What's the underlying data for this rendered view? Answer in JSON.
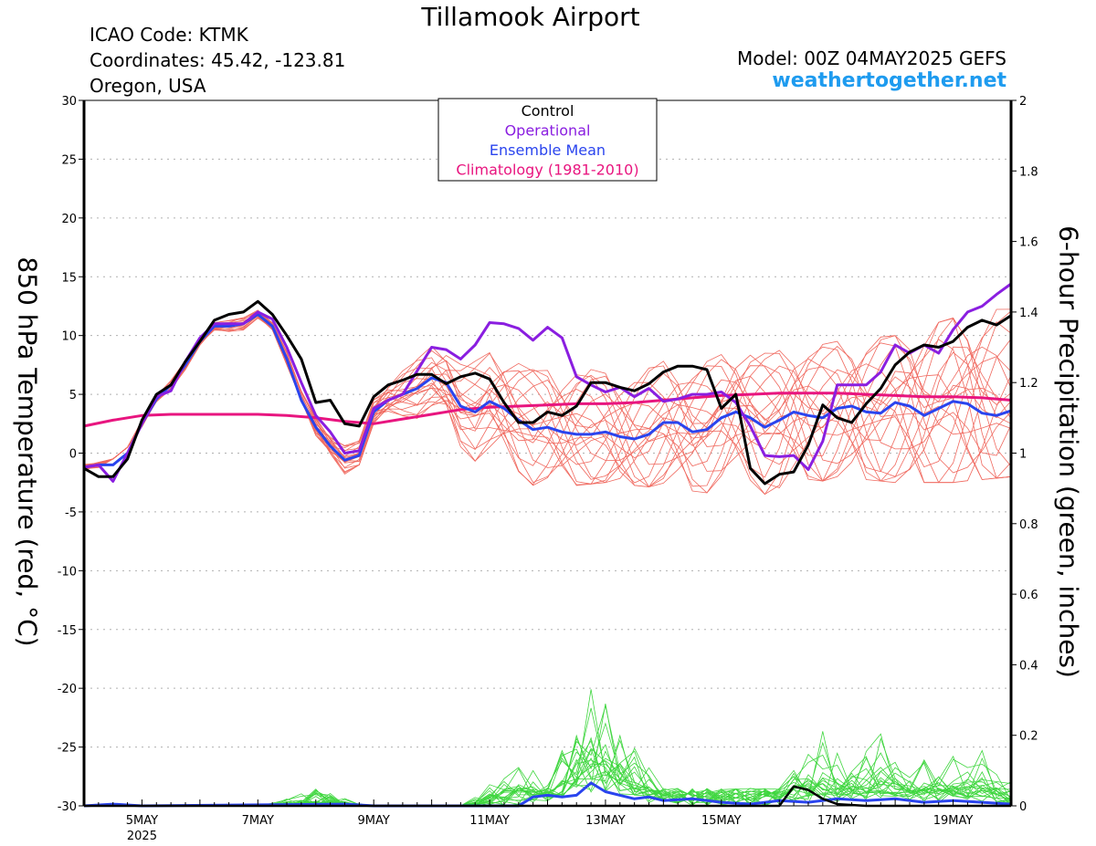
{
  "header": {
    "title": "Tillamook Airport",
    "icao": "ICAO Code: KTMK",
    "coords": "Coordinates: 45.42, -123.81",
    "region": "Oregon, USA",
    "model": "Model: 00Z 04MAY2025 GEFS",
    "site": "weathertogether.net"
  },
  "chart_data": {
    "type": "line",
    "ylabel": "850 hPa Temperature (red, °C)",
    "ylabel2": "6-hour Precipitation (green, inches)",
    "xlim": [
      4.0,
      20.0
    ],
    "ylim": [
      -30,
      30
    ],
    "ylim2": [
      0,
      2
    ],
    "yticks": [
      30,
      25,
      20,
      15,
      10,
      5,
      0,
      -5,
      -10,
      -15,
      -20,
      -25,
      -30
    ],
    "yticks2": [
      "2",
      "1.8",
      "1.6",
      "1.4",
      "1.2",
      "1",
      "0.8",
      "0.6",
      "0.4",
      "0.2",
      "0"
    ],
    "xtick_labels": [
      {
        "x": 5,
        "label": "5MAY",
        "sub": "2025"
      },
      {
        "x": 7,
        "label": "7MAY"
      },
      {
        "x": 9,
        "label": "9MAY"
      },
      {
        "x": 11,
        "label": "11MAY"
      },
      {
        "x": 13,
        "label": "13MAY"
      },
      {
        "x": 15,
        "label": "15MAY"
      },
      {
        "x": 17,
        "label": "17MAY"
      },
      {
        "x": 19,
        "label": "19MAY"
      }
    ],
    "grid": true,
    "legend": {
      "position": "top-center",
      "entries": [
        {
          "name": "Control",
          "color": "#000000"
        },
        {
          "name": "Operational",
          "color": "#8a1ee0"
        },
        {
          "name": "Ensemble Mean",
          "color": "#2a44ee"
        },
        {
          "name": "Climatology (1981-2010)",
          "color": "#e8157f"
        }
      ]
    },
    "colors": {
      "control": "#000000",
      "operational": "#8a1ee0",
      "mean": "#2a44ee",
      "climatology": "#e8157f",
      "members_temp": "#f0695f",
      "members_precip": "#3ed63e"
    },
    "series": [
      {
        "name": "Control",
        "role": "control_temp",
        "points": [
          [
            4.0,
            -1.3
          ],
          [
            4.25,
            -2.0
          ],
          [
            4.5,
            -2.0
          ],
          [
            4.75,
            -0.5
          ],
          [
            5.0,
            2.8
          ],
          [
            5.25,
            5.0
          ],
          [
            5.5,
            5.8
          ],
          [
            5.75,
            7.8
          ],
          [
            6.0,
            9.5
          ],
          [
            6.25,
            11.3
          ],
          [
            6.5,
            11.8
          ],
          [
            6.75,
            12.0
          ],
          [
            7.0,
            12.9
          ],
          [
            7.25,
            11.8
          ],
          [
            7.5,
            10.0
          ],
          [
            7.75,
            8.0
          ],
          [
            8.0,
            4.3
          ],
          [
            8.25,
            4.5
          ],
          [
            8.5,
            2.5
          ],
          [
            8.75,
            2.3
          ],
          [
            9.0,
            4.8
          ],
          [
            9.25,
            5.8
          ],
          [
            9.5,
            6.2
          ],
          [
            9.75,
            6.7
          ],
          [
            10.0,
            6.7
          ],
          [
            10.25,
            5.9
          ],
          [
            10.5,
            6.5
          ],
          [
            10.75,
            6.8
          ],
          [
            11.0,
            6.3
          ],
          [
            11.25,
            4.3
          ],
          [
            11.5,
            2.6
          ],
          [
            11.75,
            2.6
          ],
          [
            12.0,
            3.5
          ],
          [
            12.25,
            3.2
          ],
          [
            12.5,
            4.0
          ],
          [
            12.75,
            6.0
          ],
          [
            13.0,
            6.0
          ],
          [
            13.25,
            5.6
          ],
          [
            13.5,
            5.3
          ],
          [
            13.75,
            5.9
          ],
          [
            14.0,
            6.9
          ],
          [
            14.25,
            7.4
          ],
          [
            14.5,
            7.4
          ],
          [
            14.75,
            7.1
          ],
          [
            15.0,
            3.8
          ],
          [
            15.25,
            5.0
          ],
          [
            15.5,
            -1.3
          ],
          [
            15.75,
            -2.6
          ],
          [
            16.0,
            -1.8
          ],
          [
            16.25,
            -1.6
          ],
          [
            16.5,
            0.7
          ],
          [
            16.75,
            4.1
          ],
          [
            17.0,
            3.0
          ],
          [
            17.25,
            2.6
          ],
          [
            17.5,
            4.2
          ],
          [
            17.75,
            5.5
          ],
          [
            18.0,
            7.5
          ],
          [
            18.25,
            8.6
          ],
          [
            18.5,
            9.2
          ],
          [
            18.75,
            9.0
          ],
          [
            19.0,
            9.5
          ],
          [
            19.25,
            10.7
          ],
          [
            19.5,
            11.3
          ],
          [
            19.75,
            10.9
          ],
          [
            20.0,
            11.7
          ]
        ]
      },
      {
        "name": "Operational",
        "role": "operational_temp",
        "points": [
          [
            4.0,
            -1.2
          ],
          [
            4.25,
            -1.0
          ],
          [
            4.5,
            -2.4
          ],
          [
            4.75,
            0.0
          ],
          [
            5.0,
            2.5
          ],
          [
            5.25,
            4.8
          ],
          [
            5.5,
            5.3
          ],
          [
            5.75,
            7.8
          ],
          [
            6.0,
            9.8
          ],
          [
            6.25,
            11.0
          ],
          [
            6.5,
            11.0
          ],
          [
            6.75,
            11.0
          ],
          [
            7.0,
            12.0
          ],
          [
            7.25,
            11.4
          ],
          [
            7.5,
            9.0
          ],
          [
            7.75,
            6.0
          ],
          [
            8.0,
            3.2
          ],
          [
            8.25,
            1.8
          ],
          [
            8.5,
            0.0
          ],
          [
            8.75,
            0.2
          ],
          [
            9.0,
            3.8
          ],
          [
            9.25,
            4.5
          ],
          [
            9.5,
            5.0
          ],
          [
            9.75,
            7.0
          ],
          [
            10.0,
            9.0
          ],
          [
            10.25,
            8.8
          ],
          [
            10.5,
            8.0
          ],
          [
            10.75,
            9.2
          ],
          [
            11.0,
            11.1
          ],
          [
            11.25,
            11.0
          ],
          [
            11.5,
            10.6
          ],
          [
            11.75,
            9.6
          ],
          [
            12.0,
            10.7
          ],
          [
            12.25,
            9.8
          ],
          [
            12.5,
            6.5
          ],
          [
            12.75,
            5.8
          ],
          [
            13.0,
            5.2
          ],
          [
            13.25,
            5.6
          ],
          [
            13.5,
            4.8
          ],
          [
            13.75,
            5.5
          ],
          [
            14.0,
            4.4
          ],
          [
            14.25,
            4.6
          ],
          [
            14.5,
            5.0
          ],
          [
            14.75,
            5.0
          ],
          [
            15.0,
            5.2
          ],
          [
            15.25,
            4.3
          ],
          [
            15.5,
            2.3
          ],
          [
            15.75,
            -0.2
          ],
          [
            16.0,
            -0.3
          ],
          [
            16.25,
            -0.2
          ],
          [
            16.5,
            -1.4
          ],
          [
            16.75,
            1.0
          ],
          [
            17.0,
            5.8
          ],
          [
            17.25,
            5.8
          ],
          [
            17.5,
            5.8
          ],
          [
            17.75,
            6.9
          ],
          [
            18.0,
            9.2
          ],
          [
            18.25,
            8.5
          ],
          [
            18.5,
            9.2
          ],
          [
            18.75,
            8.5
          ],
          [
            19.0,
            10.5
          ],
          [
            19.25,
            12.0
          ],
          [
            19.5,
            12.5
          ],
          [
            19.75,
            13.5
          ],
          [
            20.0,
            14.4
          ]
        ]
      },
      {
        "name": "Ensemble Mean",
        "role": "mean_temp",
        "points": [
          [
            4.0,
            -1.2
          ],
          [
            4.25,
            -1.0
          ],
          [
            4.5,
            -1.0
          ],
          [
            4.75,
            0.0
          ],
          [
            5.0,
            2.5
          ],
          [
            5.25,
            4.6
          ],
          [
            5.5,
            5.8
          ],
          [
            5.75,
            7.5
          ],
          [
            6.0,
            9.5
          ],
          [
            6.25,
            10.8
          ],
          [
            6.5,
            10.8
          ],
          [
            6.75,
            11.0
          ],
          [
            7.0,
            11.8
          ],
          [
            7.25,
            10.8
          ],
          [
            7.5,
            8.0
          ],
          [
            7.75,
            4.5
          ],
          [
            8.0,
            2.2
          ],
          [
            8.25,
            0.6
          ],
          [
            8.5,
            -0.6
          ],
          [
            8.75,
            -0.2
          ],
          [
            9.0,
            3.5
          ],
          [
            9.25,
            4.5
          ],
          [
            9.5,
            5.0
          ],
          [
            9.75,
            5.5
          ],
          [
            10.0,
            6.4
          ],
          [
            10.25,
            6.0
          ],
          [
            10.5,
            4.0
          ],
          [
            10.75,
            3.5
          ],
          [
            11.0,
            4.4
          ],
          [
            11.25,
            3.8
          ],
          [
            11.5,
            2.8
          ],
          [
            11.75,
            2.0
          ],
          [
            12.0,
            2.2
          ],
          [
            12.25,
            1.8
          ],
          [
            12.5,
            1.6
          ],
          [
            12.75,
            1.6
          ],
          [
            13.0,
            1.8
          ],
          [
            13.25,
            1.4
          ],
          [
            13.5,
            1.2
          ],
          [
            13.75,
            1.6
          ],
          [
            14.0,
            2.6
          ],
          [
            14.25,
            2.6
          ],
          [
            14.5,
            1.8
          ],
          [
            14.75,
            2.0
          ],
          [
            15.0,
            3.0
          ],
          [
            15.25,
            3.5
          ],
          [
            15.5,
            3.0
          ],
          [
            15.75,
            2.2
          ],
          [
            16.0,
            2.8
          ],
          [
            16.25,
            3.5
          ],
          [
            16.5,
            3.2
          ],
          [
            16.75,
            3.0
          ],
          [
            17.0,
            3.8
          ],
          [
            17.25,
            4.0
          ],
          [
            17.5,
            3.5
          ],
          [
            17.75,
            3.4
          ],
          [
            18.0,
            4.3
          ],
          [
            18.25,
            4.0
          ],
          [
            18.5,
            3.2
          ],
          [
            18.75,
            3.8
          ],
          [
            19.0,
            4.4
          ],
          [
            19.25,
            4.2
          ],
          [
            19.5,
            3.4
          ],
          [
            19.75,
            3.2
          ],
          [
            20.0,
            3.6
          ]
        ]
      },
      {
        "name": "Climatology (1981-2010)",
        "role": "climatology_temp",
        "points": [
          [
            4.0,
            2.3
          ],
          [
            4.5,
            2.8
          ],
          [
            5.0,
            3.2
          ],
          [
            5.5,
            3.3
          ],
          [
            6.0,
            3.3
          ],
          [
            6.5,
            3.3
          ],
          [
            7.0,
            3.3
          ],
          [
            7.5,
            3.2
          ],
          [
            8.0,
            3.0
          ],
          [
            8.5,
            2.7
          ],
          [
            9.0,
            2.5
          ],
          [
            9.5,
            2.9
          ],
          [
            10.0,
            3.3
          ],
          [
            10.5,
            3.7
          ],
          [
            11.0,
            3.9
          ],
          [
            11.5,
            4.0
          ],
          [
            12.0,
            4.1
          ],
          [
            12.5,
            4.2
          ],
          [
            13.0,
            4.2
          ],
          [
            13.5,
            4.3
          ],
          [
            14.0,
            4.5
          ],
          [
            14.5,
            4.7
          ],
          [
            15.0,
            4.9
          ],
          [
            15.5,
            5.0
          ],
          [
            16.0,
            5.1
          ],
          [
            16.5,
            5.1
          ],
          [
            17.0,
            5.1
          ],
          [
            17.5,
            5.0
          ],
          [
            18.0,
            4.9
          ],
          [
            18.5,
            4.8
          ],
          [
            19.0,
            4.8
          ],
          [
            19.5,
            4.7
          ],
          [
            20.0,
            4.5
          ]
        ]
      },
      {
        "name": "Control precipitation",
        "role": "control_precip",
        "points": [
          [
            4.0,
            0.0
          ],
          [
            16.0,
            0.0
          ],
          [
            16.25,
            0.055
          ],
          [
            16.5,
            0.045
          ],
          [
            16.75,
            0.02
          ],
          [
            17.0,
            0.005
          ],
          [
            17.5,
            0.0
          ],
          [
            20.0,
            0.0
          ]
        ]
      },
      {
        "name": "Ensemble mean precipitation",
        "role": "mean_precip",
        "points": [
          [
            4.0,
            0.0
          ],
          [
            4.5,
            0.005
          ],
          [
            5.0,
            0.0
          ],
          [
            8.5,
            0.005
          ],
          [
            9.0,
            0.0
          ],
          [
            11.5,
            0.0
          ],
          [
            11.75,
            0.025
          ],
          [
            12.0,
            0.03
          ],
          [
            12.25,
            0.025
          ],
          [
            12.5,
            0.03
          ],
          [
            12.75,
            0.065
          ],
          [
            13.0,
            0.04
          ],
          [
            13.25,
            0.03
          ],
          [
            13.5,
            0.02
          ],
          [
            13.75,
            0.025
          ],
          [
            14.0,
            0.015
          ],
          [
            14.5,
            0.02
          ],
          [
            15.0,
            0.01
          ],
          [
            15.5,
            0.005
          ],
          [
            16.0,
            0.015
          ],
          [
            16.5,
            0.01
          ],
          [
            17.0,
            0.02
          ],
          [
            17.5,
            0.015
          ],
          [
            18.0,
            0.02
          ],
          [
            18.5,
            0.01
          ],
          [
            19.0,
            0.015
          ],
          [
            19.5,
            0.01
          ],
          [
            20.0,
            0.005
          ]
        ]
      }
    ],
    "members_temp_count": 20,
    "members_temp_peak_envelope": {
      "x": [
        4.0,
        5.0,
        6.0,
        6.75,
        7.0,
        7.5,
        8.0,
        8.5,
        9.0,
        10.0,
        11.0,
        12.0,
        13.0,
        14.0,
        15.0,
        16.0,
        17.0,
        18.0,
        19.0,
        20.0
      ],
      "upper": [
        -0.5,
        3.5,
        10.5,
        12.3,
        12.2,
        10.0,
        5.0,
        1.5,
        5.0,
        10.0,
        11.0,
        10.5,
        10.5,
        9.5,
        8.5,
        9.0,
        9.5,
        10.0,
        11.5,
        12.5
      ],
      "lower": [
        -2.5,
        1.5,
        8.5,
        10.0,
        10.5,
        7.5,
        1.5,
        -3.0,
        1.0,
        1.0,
        -2.0,
        -3.0,
        -2.5,
        -3.0,
        -3.5,
        -3.5,
        -2.0,
        -2.5,
        -2.5,
        -2.0
      ]
    },
    "members_precip_max": [
      {
        "x": 8.0,
        "value": 0.05
      },
      {
        "x": 11.5,
        "value": 0.15
      },
      {
        "x": 12.75,
        "value": 0.37
      },
      {
        "x": 13.0,
        "value": 0.29
      },
      {
        "x": 13.5,
        "value": 0.17
      },
      {
        "x": 16.75,
        "value": 0.24
      },
      {
        "x": 17.75,
        "value": 0.23
      },
      {
        "x": 18.75,
        "value": 0.2
      },
      {
        "x": 19.5,
        "value": 0.16
      }
    ]
  }
}
